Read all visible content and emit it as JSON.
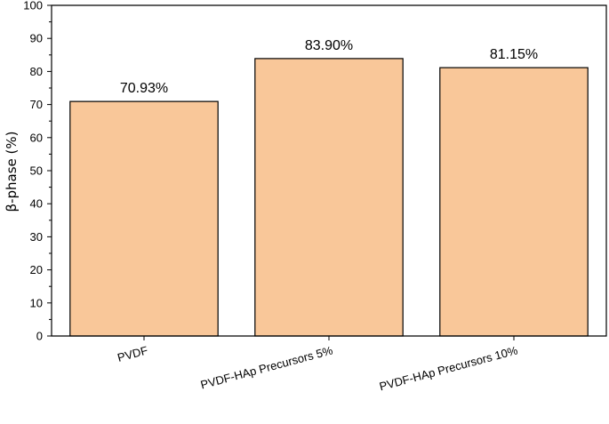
{
  "chart_data": {
    "type": "bar",
    "title": "",
    "xlabel": "",
    "ylabel": "β-phase (%)",
    "ylim": [
      0,
      100
    ],
    "yticks": [
      0,
      10,
      20,
      30,
      40,
      50,
      60,
      70,
      80,
      90,
      100
    ],
    "categories": [
      "PVDF",
      "PVDF-HAp Precursors 5%",
      "PVDF-HAp Precursors 10%"
    ],
    "values": [
      70.93,
      83.9,
      81.15
    ],
    "data_labels": [
      "70.93%",
      "83.90%",
      "81.15%"
    ],
    "bar_color": "#f9c799",
    "grid": false,
    "legend": "none"
  }
}
